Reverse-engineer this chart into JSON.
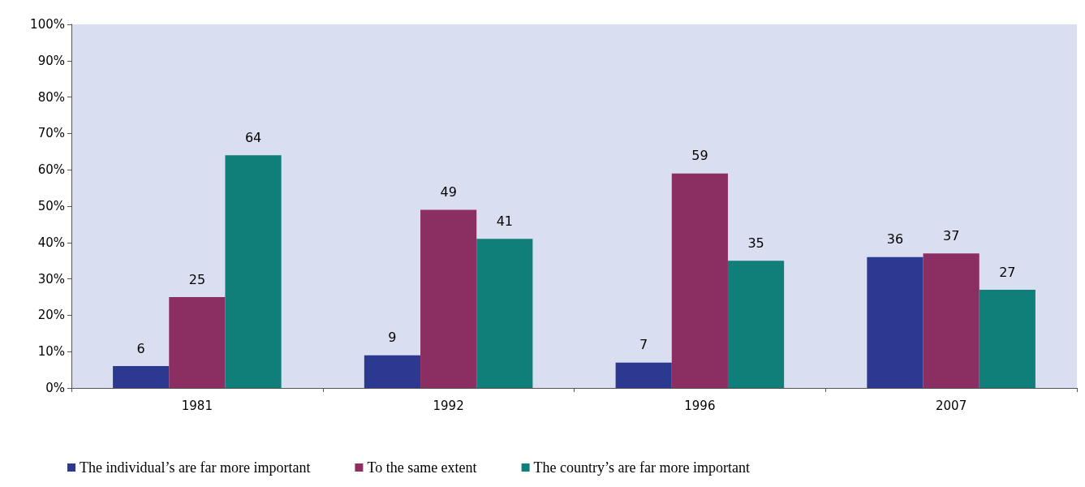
{
  "chart_data": {
    "type": "bar",
    "categories": [
      "1981",
      "1992",
      "1996",
      "2007"
    ],
    "series": [
      {
        "name": "The individual’s are far more important",
        "color": "#2b3990",
        "values": [
          6,
          9,
          7,
          36
        ]
      },
      {
        "name": "To the same extent",
        "color": "#8b2e62",
        "values": [
          25,
          49,
          59,
          37
        ]
      },
      {
        "name": "The country’s are far more important",
        "color": "#117f79",
        "values": [
          64,
          41,
          35,
          27
        ]
      }
    ],
    "ylim": [
      0,
      100
    ],
    "yticks": [
      {
        "value": 0,
        "label": "0%"
      },
      {
        "value": 10,
        "label": "10%"
      },
      {
        "value": 20,
        "label": "20%"
      },
      {
        "value": 30,
        "label": "30%"
      },
      {
        "value": 40,
        "label": "40%"
      },
      {
        "value": 50,
        "label": "50%"
      },
      {
        "value": 60,
        "label": "60%"
      },
      {
        "value": 70,
        "label": "70%"
      },
      {
        "value": 80,
        "label": "80%"
      },
      {
        "value": 90,
        "label": "90%"
      },
      {
        "value": 100,
        "label": "100%"
      }
    ],
    "grid": false,
    "legend": "bottom",
    "data_labels": true
  }
}
